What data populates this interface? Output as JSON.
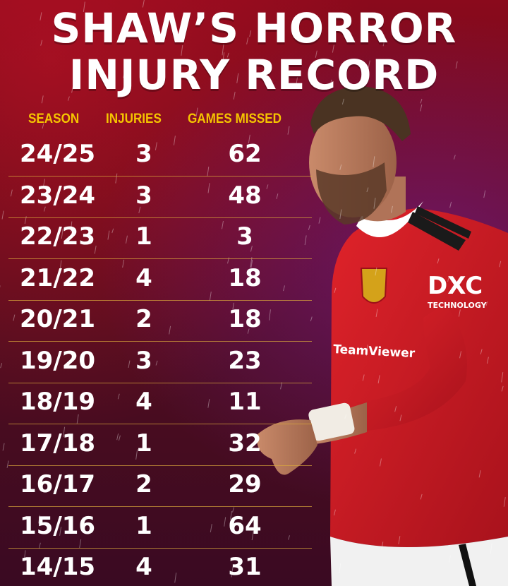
{
  "title_line1": "SHAW’S HORROR",
  "title_line2": "INJURY RECORD",
  "colors": {
    "header": "#f5c400",
    "text": "#ffffff",
    "background": "#6c0c1a",
    "divider": "#dcaa3c"
  },
  "chart_data": {
    "type": "table",
    "columns": [
      "SEASON",
      "INJURIES",
      "GAMES MISSED"
    ],
    "rows": [
      [
        "24/25",
        "3",
        "62"
      ],
      [
        "23/24",
        "3",
        "48"
      ],
      [
        "22/23",
        "1",
        "3"
      ],
      [
        "21/22",
        "4",
        "18"
      ],
      [
        "20/21",
        "2",
        "18"
      ],
      [
        "19/20",
        "3",
        "23"
      ],
      [
        "18/19",
        "4",
        "11"
      ],
      [
        "17/18",
        "1",
        "32"
      ],
      [
        "16/17",
        "2",
        "29"
      ],
      [
        "15/16",
        "1",
        "64"
      ],
      [
        "14/15",
        "4",
        "31"
      ]
    ]
  },
  "shirt": {
    "sponsor_logo": "DXC",
    "sponsor_sub": "TECHNOLOGY",
    "sleeve_sponsor": "TeamViewer"
  }
}
